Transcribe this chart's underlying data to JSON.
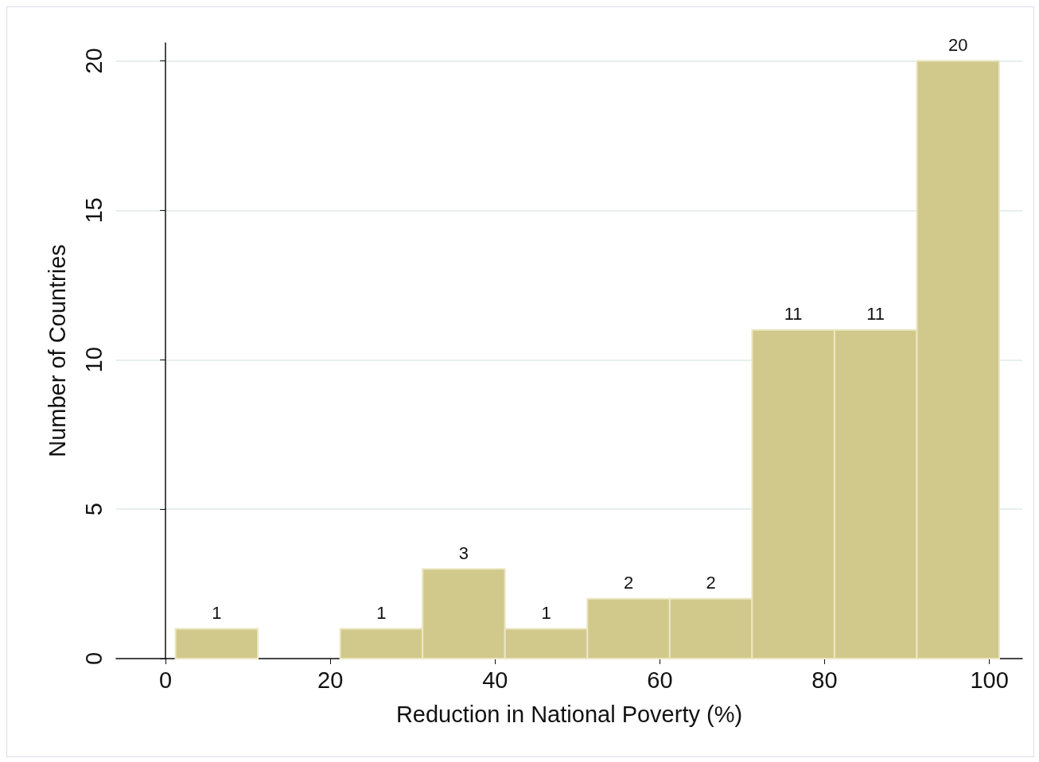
{
  "chart_data": {
    "type": "histogram",
    "xlabel": "Reduction in National Poverty (%)",
    "ylabel": "Number of Countries",
    "bins": [
      1.2,
      11.2,
      21.2,
      31.2,
      41.2,
      51.2,
      61.2,
      71.2,
      81.2,
      91.2,
      101.2
    ],
    "values": [
      1,
      0,
      1,
      3,
      1,
      2,
      2,
      11,
      11,
      20
    ],
    "value_labels": [
      "1",
      null,
      "1",
      "3",
      "1",
      "2",
      "2",
      "11",
      "11",
      "20"
    ],
    "color": "#d1c98b",
    "xlim": [
      -6,
      104
    ],
    "xticks": [
      0,
      20,
      40,
      60,
      80,
      100
    ],
    "ylim": [
      0,
      20.6
    ],
    "yticks": [
      0,
      5,
      10,
      15,
      20
    ],
    "grid": "y"
  }
}
